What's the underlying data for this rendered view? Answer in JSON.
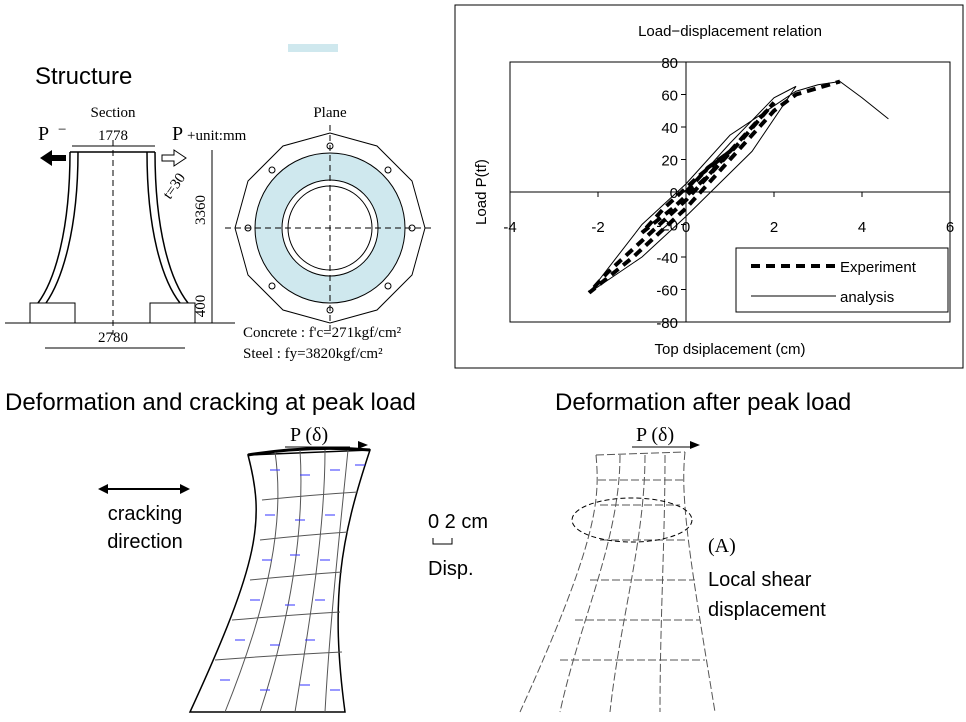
{
  "structure": {
    "title": "Structure",
    "section": {
      "label": "Section",
      "load_left": "P",
      "load_left_sign": "−",
      "top_width": "1778",
      "load_right": "P",
      "unit": "+unit:mm",
      "thickness": "t=30",
      "height": "3360",
      "base_height": "400",
      "base_width": "2780"
    },
    "plane": {
      "label": "Plane"
    },
    "materials": [
      "Concrete : f'c=271kgf/cm²",
      "Steel      : fy=3820kgf/cm²"
    ]
  },
  "chart_data": {
    "type": "line",
    "title": "Load−displacement relation",
    "x_label": "Top dsiplacement (cm)",
    "y_label": "Load P(tf)",
    "xlim": [
      -4,
      6
    ],
    "xticks": [
      -4,
      -2,
      0,
      2,
      4,
      6
    ],
    "ylim": [
      -80,
      80
    ],
    "yticks": [
      -80,
      -60,
      -40,
      -20,
      0,
      20,
      40,
      60,
      80
    ],
    "legend": "lower right",
    "series": [
      {
        "name": "Experiment",
        "color": "#000000",
        "style": "dashed",
        "x": [
          0,
          0.5,
          1,
          0.3,
          -0.5,
          -1,
          -0.3,
          0.5,
          1.5,
          2,
          1.2,
          0,
          -1,
          -1.8,
          -2.2,
          -1.2,
          0,
          1,
          2,
          2.5,
          3.5
        ],
        "values": [
          0,
          15,
          25,
          10,
          -10,
          -25,
          -10,
          10,
          40,
          55,
          30,
          -5,
          -30,
          -50,
          -62,
          -40,
          -10,
          20,
          50,
          60,
          68
        ]
      },
      {
        "name": "analysis",
        "color": "#000000",
        "style": "solid",
        "x": [
          0,
          1,
          2,
          2.5,
          1.5,
          0,
          -1,
          -2.2,
          -1,
          0,
          1,
          2.5,
          3,
          3.5,
          4,
          4.6
        ],
        "values": [
          0,
          30,
          58,
          65,
          25,
          -15,
          -40,
          -62,
          -20,
          5,
          35,
          62,
          66,
          68,
          58,
          45
        ]
      }
    ]
  },
  "peak": {
    "title": "Deformation and cracking at peak load",
    "load": "P  (δ)",
    "cracking": [
      "cracking",
      "direction"
    ]
  },
  "scale": {
    "label": "0  2 cm",
    "unit": "Disp."
  },
  "after": {
    "title": "Deformation after peak load",
    "load": "P  (δ)",
    "marker": "(A)",
    "note": [
      "Local shear",
      "displacement"
    ]
  }
}
